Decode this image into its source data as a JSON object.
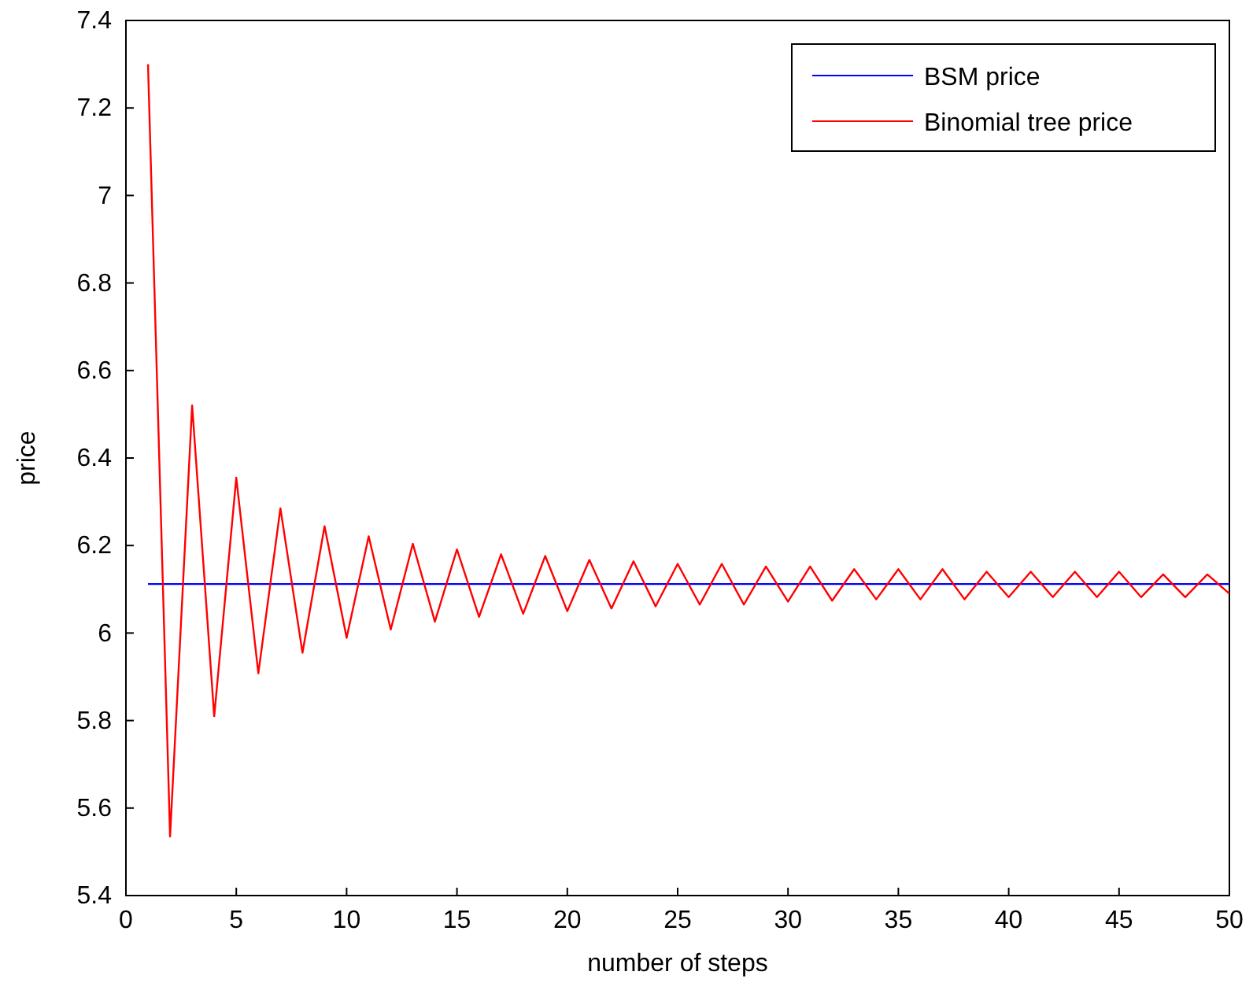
{
  "chart_data": {
    "type": "line",
    "xlabel": "number of steps",
    "ylabel": "price",
    "xlim": [
      0,
      50
    ],
    "xticks": [
      0,
      5,
      10,
      15,
      20,
      25,
      30,
      35,
      40,
      45,
      50
    ],
    "ylim": [
      5.4,
      7.4
    ],
    "yticks": [
      5.4,
      5.6,
      5.8,
      6,
      6.2,
      6.4,
      6.6,
      6.8,
      7,
      7.2,
      7.4
    ],
    "grid": false,
    "legend": "top right",
    "line_style": "solid",
    "marker": "none",
    "series": [
      {
        "name": "BSM price",
        "color": "#0000ff",
        "x": [
          1,
          50
        ],
        "values": [
          6.112,
          6.112
        ]
      },
      {
        "name": "Binomial tree price",
        "color": "#ff0000",
        "x": [
          1,
          2,
          3,
          4,
          5,
          6,
          7,
          8,
          9,
          10,
          11,
          12,
          13,
          14,
          15,
          16,
          17,
          18,
          19,
          20,
          21,
          22,
          23,
          24,
          25,
          26,
          27,
          28,
          29,
          30,
          31,
          32,
          33,
          34,
          35,
          36,
          37,
          38,
          39,
          40,
          41,
          42,
          43,
          44,
          45,
          46,
          47,
          48,
          49,
          50
        ],
        "values": [
          7.3,
          5.535,
          6.52,
          5.81,
          6.355,
          5.908,
          6.285,
          5.955,
          6.244,
          5.989,
          6.221,
          6.008,
          6.204,
          6.026,
          6.191,
          6.037,
          6.18,
          6.044,
          6.176,
          6.05,
          6.167,
          6.056,
          6.164,
          6.061,
          6.158,
          6.065,
          6.158,
          6.065,
          6.152,
          6.072,
          6.152,
          6.074,
          6.146,
          6.077,
          6.146,
          6.077,
          6.146,
          6.077,
          6.14,
          6.082,
          6.14,
          6.082,
          6.14,
          6.082,
          6.14,
          6.082,
          6.134,
          6.082,
          6.134,
          6.09
        ]
      }
    ]
  }
}
